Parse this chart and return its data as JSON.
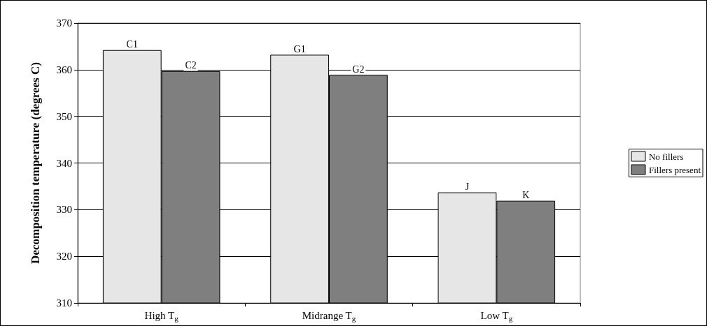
{
  "chart_data": {
    "type": "bar",
    "ylabel": "Decomposition temperature (degrees C)",
    "categories": [
      "High T$_{g}$",
      "Midrange T$_{g}$",
      "Low T$_{g}$"
    ],
    "series": [
      {
        "name": "No fillers",
        "color": "#e6e6e6",
        "values": [
          364.2,
          363.2,
          333.7
        ],
        "value_labels": [
          "C1",
          "G1",
          "J"
        ]
      },
      {
        "name": "Fillers present",
        "color": "#7f7f7f",
        "values": [
          359.7,
          358.9,
          331.9
        ],
        "value_labels": [
          "C2",
          "G2",
          "K"
        ]
      }
    ],
    "ylim": [
      310,
      370
    ],
    "yticks": [
      310,
      320,
      330,
      340,
      350,
      360,
      370
    ],
    "grid": "y",
    "legend": "right"
  }
}
